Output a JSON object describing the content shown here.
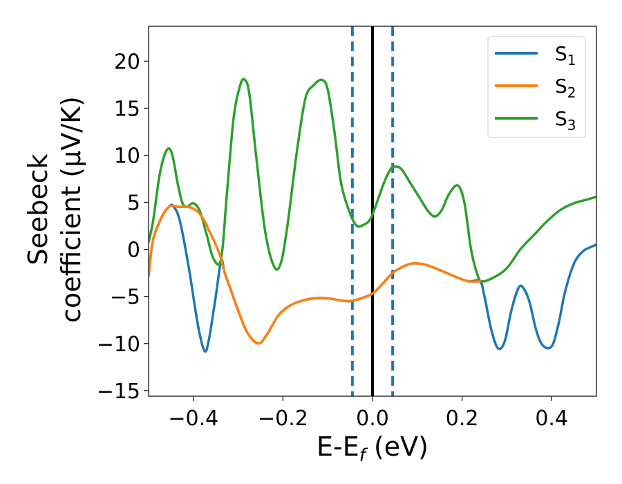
{
  "chart_data": {
    "type": "line",
    "xlabel": {
      "base": "E-E",
      "sub": "f",
      "rest": " (eV)"
    },
    "ylabel": [
      "Seebeck",
      "coefficient  (μV/K)"
    ],
    "xlim": [
      -0.5,
      0.5
    ],
    "ylim": [
      -15.6,
      23.7
    ],
    "xticks": [
      -0.4,
      -0.2,
      0.0,
      0.2,
      0.4
    ],
    "xtick_labels": [
      "−0.4",
      "−0.2",
      "0.0",
      "0.2",
      "0.4"
    ],
    "yticks": [
      -15,
      -10,
      -5,
      0,
      5,
      10,
      15,
      20
    ],
    "ytick_labels": [
      "−15",
      "−10",
      "−5",
      "0",
      "5",
      "10",
      "15",
      "20"
    ],
    "grid": false,
    "legend_position": "top-right",
    "vlines": [
      {
        "x": 0.0,
        "color": "#000000",
        "style": "solid"
      },
      {
        "x": -0.045,
        "color": "#1f77b4",
        "style": "dashed"
      },
      {
        "x": 0.045,
        "color": "#1f77b4",
        "style": "dashed"
      }
    ],
    "series": [
      {
        "name": {
          "base": "S",
          "sub": "1"
        },
        "color": "#1f77b4",
        "x": [
          -0.5,
          -0.49,
          -0.47,
          -0.455,
          -0.445,
          -0.43,
          -0.41,
          -0.39,
          -0.375,
          -0.365,
          -0.35,
          -0.338,
          -0.33,
          -0.315,
          -0.3,
          -0.28,
          -0.255,
          -0.235,
          -0.21,
          -0.185,
          -0.16,
          -0.13,
          -0.1,
          -0.075,
          -0.05,
          -0.025,
          0.0,
          0.02,
          0.045,
          0.07,
          0.09,
          0.115,
          0.14,
          0.165,
          0.19,
          0.215,
          0.24,
          0.25,
          0.265,
          0.28,
          0.295,
          0.31,
          0.325,
          0.335,
          0.35,
          0.365,
          0.38,
          0.4,
          0.415,
          0.43,
          0.45,
          0.47,
          0.49,
          0.5
        ],
        "y": [
          -2.8,
          1.0,
          3.5,
          4.5,
          4.6,
          3.0,
          -2.0,
          -8.0,
          -10.8,
          -9.5,
          -5.0,
          -1.2,
          -2.5,
          -4.5,
          -6.5,
          -8.8,
          -10.0,
          -9.0,
          -7.0,
          -6.0,
          -5.5,
          -5.2,
          -5.2,
          -5.4,
          -5.5,
          -5.2,
          -4.7,
          -3.8,
          -2.5,
          -1.8,
          -1.5,
          -1.6,
          -2.0,
          -2.5,
          -3.0,
          -3.4,
          -3.4,
          -5.0,
          -8.5,
          -10.5,
          -9.8,
          -6.5,
          -4.2,
          -4.0,
          -5.5,
          -8.5,
          -10.2,
          -10.3,
          -8.0,
          -4.5,
          -1.5,
          -0.2,
          0.3,
          0.5
        ]
      },
      {
        "name": {
          "base": "S",
          "sub": "2"
        },
        "color": "#ff7f0e",
        "x": [
          -0.5,
          -0.49,
          -0.47,
          -0.455,
          -0.445,
          -0.43,
          -0.41,
          -0.39,
          -0.375,
          -0.365,
          -0.35,
          -0.338,
          -0.33,
          -0.315,
          -0.3,
          -0.28,
          -0.255,
          -0.235,
          -0.21,
          -0.185,
          -0.16,
          -0.13,
          -0.1,
          -0.075,
          -0.05,
          -0.025,
          0.0,
          0.02,
          0.045,
          0.07,
          0.09,
          0.115,
          0.14,
          0.165,
          0.19,
          0.215,
          0.24
        ],
        "y": [
          -2.8,
          1.0,
          3.5,
          4.5,
          4.6,
          4.5,
          4.5,
          4.0,
          3.0,
          2.0,
          0.5,
          -1.0,
          -2.5,
          -4.5,
          -6.5,
          -8.8,
          -10.0,
          -9.0,
          -7.0,
          -6.0,
          -5.5,
          -5.2,
          -5.2,
          -5.4,
          -5.5,
          -5.2,
          -4.7,
          -3.8,
          -2.5,
          -1.8,
          -1.5,
          -1.6,
          -2.0,
          -2.5,
          -3.0,
          -3.4,
          -3.4
        ]
      },
      {
        "name": {
          "base": "S",
          "sub": "3"
        },
        "color": "#2ca02c",
        "x": [
          -0.5,
          -0.49,
          -0.475,
          -0.46,
          -0.448,
          -0.435,
          -0.425,
          -0.415,
          -0.4,
          -0.385,
          -0.37,
          -0.355,
          -0.338,
          -0.325,
          -0.31,
          -0.295,
          -0.285,
          -0.275,
          -0.26,
          -0.24,
          -0.22,
          -0.205,
          -0.19,
          -0.17,
          -0.15,
          -0.13,
          -0.113,
          -0.1,
          -0.085,
          -0.07,
          -0.05,
          -0.035,
          -0.02,
          -0.005,
          0.01,
          0.025,
          0.04,
          0.05,
          0.065,
          0.085,
          0.105,
          0.125,
          0.14,
          0.155,
          0.17,
          0.19,
          0.205,
          0.22,
          0.235,
          0.245,
          0.27,
          0.3,
          0.33,
          0.36,
          0.39,
          0.42,
          0.45,
          0.48,
          0.5
        ],
        "y": [
          0.8,
          3.0,
          8.0,
          10.5,
          10.2,
          7.0,
          5.0,
          4.5,
          4.9,
          4.0,
          1.5,
          -1.0,
          -1.0,
          6.0,
          14.0,
          17.5,
          18.0,
          16.5,
          10.0,
          2.0,
          -1.8,
          -1.5,
          2.5,
          10.0,
          16.0,
          17.5,
          18.0,
          17.0,
          12.5,
          7.0,
          3.8,
          2.5,
          2.6,
          3.2,
          5.0,
          7.0,
          8.5,
          8.8,
          8.5,
          7.0,
          5.5,
          4.0,
          3.5,
          4.2,
          5.8,
          6.8,
          5.0,
          0.0,
          -2.8,
          -3.4,
          -3.0,
          -2.0,
          0.0,
          1.5,
          3.0,
          4.2,
          4.9,
          5.3,
          5.6
        ]
      }
    ]
  }
}
